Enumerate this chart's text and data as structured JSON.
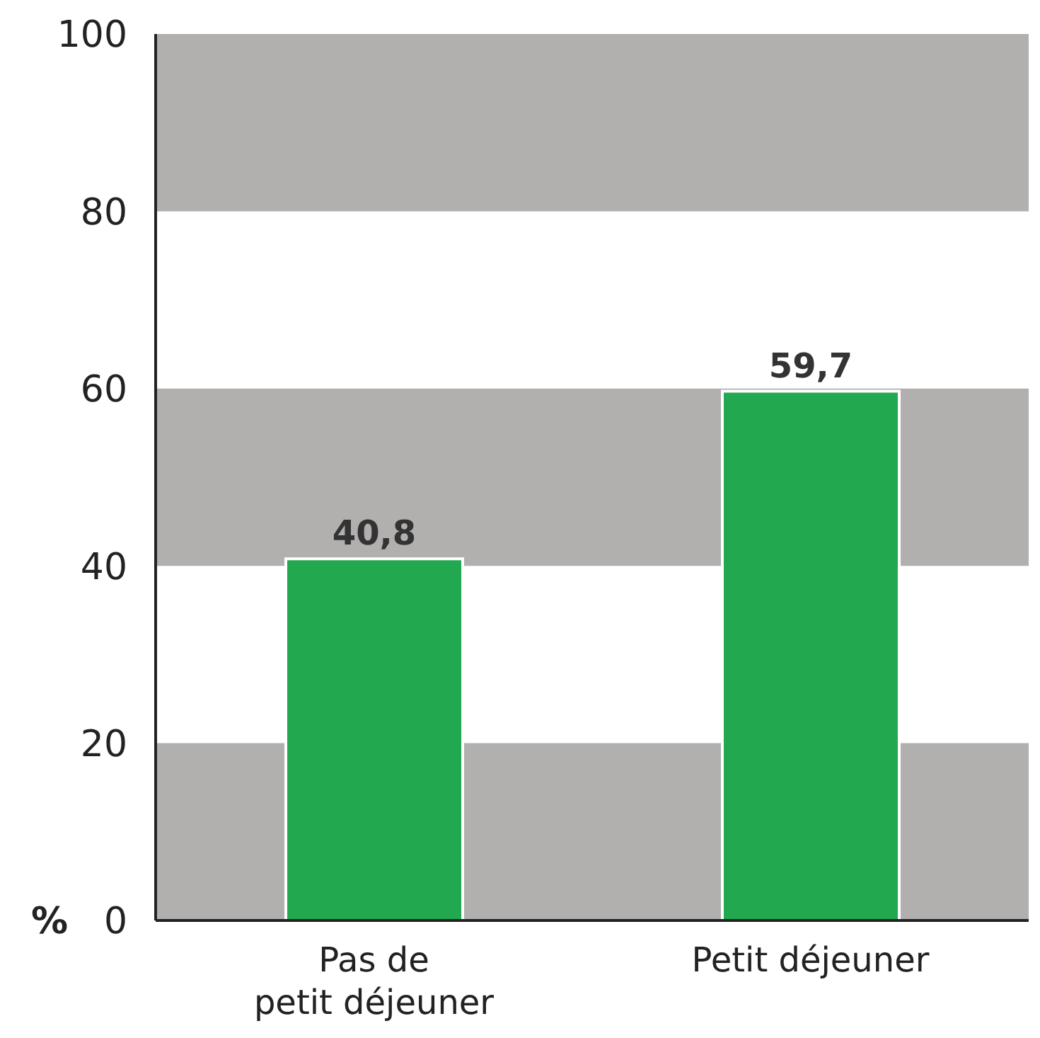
{
  "chart_data": {
    "type": "bar",
    "ylabel": "%",
    "categories": [
      "Pas de petit déjeuner",
      "Petit déjeuner"
    ],
    "values": [
      40.8,
      59.7
    ],
    "value_labels": [
      "40,8",
      "59,7"
    ],
    "color": "#22a84f",
    "ylim": [
      0,
      100
    ],
    "yticks": [
      0,
      20,
      40,
      60,
      80,
      100
    ],
    "grid": false,
    "bands": [
      {
        "axis": "y",
        "from": 0,
        "to": 20,
        "color": "#b2afaf"
      },
      {
        "axis": "y",
        "from": 40,
        "to": 60,
        "color": "#b2afaf"
      },
      {
        "axis": "y",
        "from": 80,
        "to": 100,
        "color": "#b2afaf"
      }
    ]
  }
}
